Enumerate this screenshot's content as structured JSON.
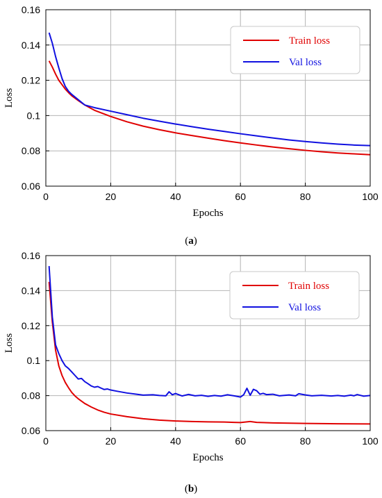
{
  "chart_data": [
    {
      "type": "line",
      "caption": "a",
      "xlabel": "Epochs",
      "ylabel": "Loss",
      "xlim": [
        0,
        100
      ],
      "ylim": [
        0.06,
        0.16
      ],
      "xticks": [
        0,
        20,
        40,
        60,
        80,
        100
      ],
      "yticks": [
        0.06,
        0.08,
        0.1,
        0.12,
        0.14,
        0.16
      ],
      "ytick_labels": [
        "0.06",
        "0.08",
        "0.1",
        "0.12",
        "0.14",
        "0.16"
      ],
      "grid": true,
      "legend_position": "top-right",
      "series": [
        {
          "name": "Train loss",
          "color": "#e00000",
          "x": [
            1,
            2,
            3,
            4,
            5,
            6,
            7,
            8,
            10,
            12,
            15,
            20,
            25,
            30,
            35,
            40,
            45,
            50,
            55,
            60,
            65,
            70,
            75,
            80,
            85,
            90,
            95,
            100
          ],
          "y": [
            0.131,
            0.1275,
            0.1235,
            0.12,
            0.1175,
            0.115,
            0.113,
            0.1112,
            0.1085,
            0.106,
            0.103,
            0.0995,
            0.0965,
            0.094,
            0.092,
            0.0902,
            0.0887,
            0.0872,
            0.0858,
            0.0845,
            0.0833,
            0.0822,
            0.0812,
            0.0803,
            0.0795,
            0.0788,
            0.0783,
            0.0778
          ]
        },
        {
          "name": "Val loss",
          "color": "#1010e0",
          "x": [
            1,
            2,
            3,
            4,
            5,
            6,
            7,
            8,
            10,
            12,
            15,
            20,
            25,
            30,
            35,
            40,
            45,
            50,
            55,
            60,
            65,
            70,
            75,
            80,
            85,
            90,
            95,
            100
          ],
          "y": [
            0.147,
            0.141,
            0.1335,
            0.127,
            0.121,
            0.1165,
            0.1138,
            0.112,
            0.109,
            0.106,
            0.1045,
            0.1025,
            0.1005,
            0.0985,
            0.0968,
            0.0952,
            0.0937,
            0.0923,
            0.091,
            0.0897,
            0.0885,
            0.0873,
            0.0862,
            0.0853,
            0.0845,
            0.0838,
            0.0833,
            0.083
          ]
        }
      ]
    },
    {
      "type": "line",
      "caption": "b",
      "xlabel": "Epochs",
      "ylabel": "Loss",
      "xlim": [
        0,
        100
      ],
      "ylim": [
        0.06,
        0.16
      ],
      "xticks": [
        0,
        20,
        40,
        60,
        80,
        100
      ],
      "yticks": [
        0.06,
        0.08,
        0.1,
        0.12,
        0.14,
        0.16
      ],
      "ytick_labels": [
        "0.06",
        "0.08",
        "0.1",
        "0.12",
        "0.14",
        "0.16"
      ],
      "grid": true,
      "legend_position": "top-right",
      "series": [
        {
          "name": "Train loss",
          "color": "#e00000",
          "x": [
            1,
            2,
            3,
            4,
            5,
            6,
            7,
            8,
            9,
            10,
            12,
            14,
            16,
            18,
            20,
            25,
            30,
            35,
            40,
            45,
            50,
            55,
            58,
            60,
            63,
            65,
            70,
            80,
            90,
            100
          ],
          "y": [
            0.145,
            0.122,
            0.106,
            0.097,
            0.0915,
            0.0875,
            0.0845,
            0.0818,
            0.0798,
            0.0782,
            0.0755,
            0.0735,
            0.0718,
            0.0705,
            0.0695,
            0.068,
            0.0668,
            0.066,
            0.0655,
            0.0652,
            0.065,
            0.0649,
            0.0647,
            0.0646,
            0.0652,
            0.0647,
            0.0644,
            0.0641,
            0.0639,
            0.0638
          ]
        },
        {
          "name": "Val loss",
          "color": "#1010e0",
          "x": [
            1,
            2,
            3,
            4,
            5,
            6,
            7,
            8,
            9,
            10,
            11,
            12,
            13,
            14,
            15,
            16,
            17,
            18,
            19,
            20,
            22,
            25,
            28,
            30,
            33,
            35,
            37,
            38,
            39,
            40,
            42,
            44,
            46,
            48,
            50,
            52,
            54,
            56,
            58,
            60,
            61,
            62,
            63,
            64,
            65,
            66,
            67,
            68,
            70,
            72,
            75,
            77,
            78,
            80,
            82,
            85,
            88,
            90,
            92,
            94,
            95,
            96,
            98,
            100
          ],
          "y": [
            0.154,
            0.125,
            0.109,
            0.104,
            0.1,
            0.097,
            0.0955,
            0.0935,
            0.0915,
            0.0895,
            0.0898,
            0.088,
            0.0868,
            0.0855,
            0.0848,
            0.0852,
            0.0843,
            0.0835,
            0.0838,
            0.0832,
            0.0825,
            0.0815,
            0.0808,
            0.0803,
            0.0805,
            0.0801,
            0.0799,
            0.0822,
            0.0805,
            0.0812,
            0.0798,
            0.0807,
            0.0799,
            0.0802,
            0.0796,
            0.0801,
            0.0797,
            0.0805,
            0.0799,
            0.0792,
            0.0805,
            0.0842,
            0.0802,
            0.0836,
            0.0828,
            0.0808,
            0.0813,
            0.0806,
            0.0808,
            0.0799,
            0.0804,
            0.0799,
            0.0811,
            0.0804,
            0.0799,
            0.0802,
            0.0798,
            0.0801,
            0.0797,
            0.0803,
            0.0799,
            0.0806,
            0.0797,
            0.0801
          ]
        }
      ]
    }
  ]
}
